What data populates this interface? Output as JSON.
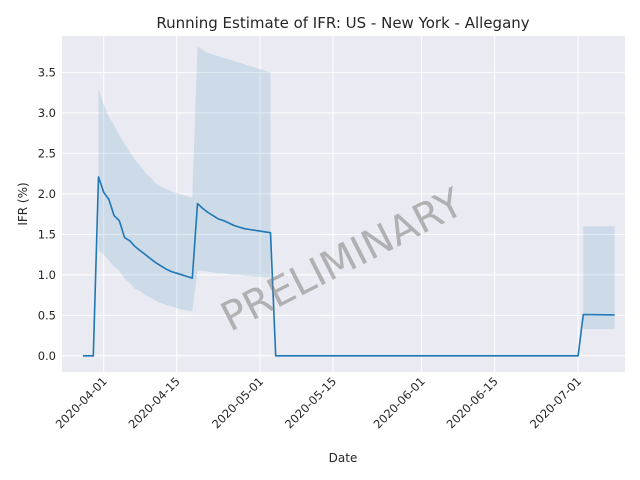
{
  "chart_data": {
    "type": "line",
    "title": "Running Estimate of IFR: US - New York - Allegany",
    "xlabel": "Date",
    "ylabel": "IFR (%)",
    "watermark": "PRELIMINARY",
    "x_ticks": [
      "2020-04-01",
      "2020-04-15",
      "2020-05-01",
      "2020-05-15",
      "2020-06-01",
      "2020-06-15",
      "2020-07-01"
    ],
    "y_ticks": [
      "0.0",
      "0.5",
      "1.0",
      "1.5",
      "2.0",
      "2.5",
      "3.0",
      "3.5"
    ],
    "ylim": [
      -0.2,
      3.95
    ],
    "xlim": [
      "2020-03-24",
      "2020-07-10"
    ],
    "grid": true,
    "colors": {
      "line": "#1f77b4",
      "band": "#1f77b4",
      "background": "#eaeaf2",
      "grid": "#ffffff"
    },
    "series": [
      {
        "points": [
          [
            "2020-03-28",
            0.0
          ],
          [
            "2020-03-30",
            0.0
          ],
          [
            "2020-03-31",
            2.21
          ],
          [
            "2020-04-01",
            2.02
          ],
          [
            "2020-04-02",
            1.93
          ],
          [
            "2020-04-03",
            1.73
          ],
          [
            "2020-04-04",
            1.67
          ],
          [
            "2020-04-05",
            1.46
          ],
          [
            "2020-04-06",
            1.42
          ],
          [
            "2020-04-07",
            1.35
          ],
          [
            "2020-04-08",
            1.3
          ],
          [
            "2020-04-09",
            1.25
          ],
          [
            "2020-04-10",
            1.2
          ],
          [
            "2020-04-11",
            1.15
          ],
          [
            "2020-04-12",
            1.11
          ],
          [
            "2020-04-13",
            1.07
          ],
          [
            "2020-04-14",
            1.04
          ],
          [
            "2020-04-15",
            1.02
          ],
          [
            "2020-04-16",
            1.0
          ],
          [
            "2020-04-17",
            0.98
          ],
          [
            "2020-04-18",
            0.96
          ],
          [
            "2020-04-19",
            1.88
          ],
          [
            "2020-04-20",
            1.82
          ],
          [
            "2020-04-21",
            1.77
          ],
          [
            "2020-04-22",
            1.73
          ],
          [
            "2020-04-23",
            1.69
          ],
          [
            "2020-04-24",
            1.67
          ],
          [
            "2020-04-25",
            1.64
          ],
          [
            "2020-04-26",
            1.61
          ],
          [
            "2020-04-27",
            1.59
          ],
          [
            "2020-04-28",
            1.57
          ],
          [
            "2020-04-29",
            1.56
          ],
          [
            "2020-04-30",
            1.55
          ],
          [
            "2020-05-01",
            1.54
          ],
          [
            "2020-05-02",
            1.53
          ],
          [
            "2020-05-03",
            1.52
          ],
          [
            "2020-05-04",
            0.0
          ],
          [
            "2020-07-01",
            0.0
          ],
          [
            "2020-07-02",
            0.51
          ],
          [
            "2020-07-08",
            0.505
          ]
        ],
        "band": [
          [
            "2020-03-31",
            1.3,
            3.3
          ],
          [
            "2020-04-01",
            1.25,
            3.1
          ],
          [
            "2020-04-02",
            1.18,
            2.95
          ],
          [
            "2020-04-03",
            1.1,
            2.85
          ],
          [
            "2020-04-04",
            1.05,
            2.72
          ],
          [
            "2020-04-05",
            0.95,
            2.62
          ],
          [
            "2020-04-06",
            0.9,
            2.52
          ],
          [
            "2020-04-07",
            0.83,
            2.42
          ],
          [
            "2020-04-08",
            0.8,
            2.35
          ],
          [
            "2020-04-09",
            0.75,
            2.26
          ],
          [
            "2020-04-10",
            0.72,
            2.2
          ],
          [
            "2020-04-11",
            0.68,
            2.13
          ],
          [
            "2020-04-12",
            0.65,
            2.09
          ],
          [
            "2020-04-13",
            0.63,
            2.06
          ],
          [
            "2020-04-14",
            0.61,
            2.03
          ],
          [
            "2020-04-15",
            0.59,
            2.01
          ],
          [
            "2020-04-16",
            0.57,
            1.99
          ],
          [
            "2020-04-17",
            0.56,
            1.97
          ],
          [
            "2020-04-18",
            0.55,
            1.95
          ],
          [
            "2020-04-19",
            1.05,
            3.82
          ],
          [
            "2020-04-20",
            1.05,
            3.78
          ],
          [
            "2020-04-21",
            1.04,
            3.74
          ],
          [
            "2020-04-22",
            1.03,
            3.72
          ],
          [
            "2020-04-23",
            1.02,
            3.7
          ],
          [
            "2020-04-24",
            1.02,
            3.68
          ],
          [
            "2020-04-25",
            1.01,
            3.66
          ],
          [
            "2020-04-26",
            1.0,
            3.64
          ],
          [
            "2020-04-27",
            1.0,
            3.62
          ],
          [
            "2020-04-28",
            0.99,
            3.6
          ],
          [
            "2020-04-29",
            0.99,
            3.58
          ],
          [
            "2020-04-30",
            0.98,
            3.56
          ],
          [
            "2020-05-01",
            0.98,
            3.54
          ],
          [
            "2020-05-02",
            0.97,
            3.52
          ],
          [
            "2020-05-03",
            0.97,
            3.5
          ],
          [
            "2020-07-02",
            0.33,
            1.6
          ],
          [
            "2020-07-08",
            0.33,
            1.6
          ]
        ]
      }
    ]
  }
}
